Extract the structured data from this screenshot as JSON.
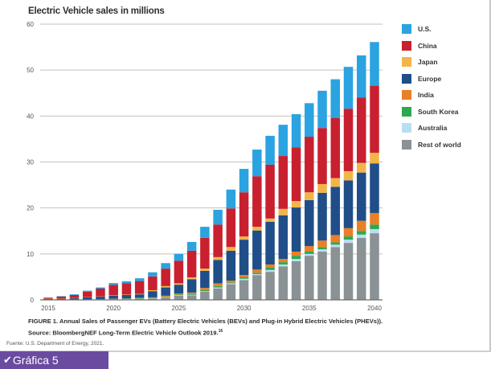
{
  "chart_data": {
    "type": "bar",
    "stacked": true,
    "title": "Electric Vehicle sales in millions",
    "xlabel": "",
    "ylabel": "",
    "ylim": [
      0,
      60
    ],
    "yticks": [
      0,
      10,
      20,
      30,
      40,
      50,
      60
    ],
    "xticks": [
      "2015",
      "2020",
      "2025",
      "2030",
      "2035",
      "2040"
    ],
    "grid": true,
    "legend_position": "right",
    "categories": [
      "2015",
      "2016",
      "2017",
      "2018",
      "2019",
      "2020",
      "2021",
      "2022",
      "2023",
      "2024",
      "2025",
      "2026",
      "2027",
      "2028",
      "2029",
      "2030",
      "2031",
      "2032",
      "2033",
      "2034",
      "2035",
      "2036",
      "2037",
      "2038",
      "2039",
      "2040"
    ],
    "series": [
      {
        "name": "Rest of world",
        "color": "#8a9296",
        "values": [
          0.0,
          0.0,
          0.05,
          0.05,
          0.1,
          0.1,
          0.15,
          0.2,
          0.3,
          0.5,
          0.9,
          1.0,
          1.8,
          2.5,
          3.4,
          4.3,
          5.4,
          6.1,
          7.3,
          8.4,
          9.6,
          10.5,
          11.5,
          12.4,
          13.5,
          14.5
        ]
      },
      {
        "name": "Australia",
        "color": "#b9def2",
        "values": [
          0.0,
          0.0,
          0.0,
          0.0,
          0.0,
          0.05,
          0.05,
          0.05,
          0.05,
          0.1,
          0.1,
          0.1,
          0.1,
          0.2,
          0.2,
          0.3,
          0.2,
          0.4,
          0.4,
          0.5,
          0.4,
          0.5,
          0.5,
          0.7,
          0.7,
          0.9
        ]
      },
      {
        "name": "South Korea",
        "color": "#2fa84f",
        "values": [
          0.0,
          0.0,
          0.0,
          0.05,
          0.05,
          0.05,
          0.05,
          0.1,
          0.1,
          0.1,
          0.2,
          0.2,
          0.2,
          0.3,
          0.2,
          0.3,
          0.3,
          0.5,
          0.5,
          0.7,
          0.5,
          0.5,
          0.5,
          0.7,
          0.8,
          1.0
        ]
      },
      {
        "name": "India",
        "color": "#e97f27",
        "values": [
          0.0,
          0.0,
          0.0,
          0.0,
          0.0,
          0.05,
          0.05,
          0.1,
          0.1,
          0.2,
          0.2,
          0.3,
          0.5,
          0.6,
          0.4,
          0.5,
          0.7,
          0.7,
          0.7,
          0.9,
          1.2,
          1.4,
          1.6,
          1.8,
          2.2,
          2.5
        ]
      },
      {
        "name": "Europe",
        "color": "#1f4e88",
        "values": [
          0.2,
          0.2,
          0.3,
          0.45,
          0.55,
          0.7,
          0.75,
          0.75,
          1.35,
          1.8,
          1.9,
          2.9,
          3.7,
          5.1,
          6.5,
          7.7,
          8.5,
          9.3,
          9.5,
          9.6,
          10.0,
          10.4,
          10.5,
          10.4,
          10.5,
          10.8
        ]
      },
      {
        "name": "Japan",
        "color": "#f3b548",
        "values": [
          0.05,
          0.05,
          0.05,
          0.05,
          0.05,
          0.1,
          0.1,
          0.1,
          0.2,
          0.3,
          0.3,
          0.4,
          0.5,
          0.6,
          0.8,
          0.7,
          0.8,
          0.7,
          1.4,
          1.4,
          1.7,
          1.9,
          1.9,
          2.0,
          2.1,
          2.3
        ]
      },
      {
        "name": "China",
        "color": "#c8202f",
        "values": [
          0.2,
          0.45,
          0.65,
          1.2,
          1.7,
          2.2,
          2.5,
          2.8,
          3.0,
          3.8,
          4.9,
          5.8,
          6.7,
          7.1,
          8.4,
          9.6,
          11.0,
          11.7,
          11.5,
          11.7,
          12.1,
          12.2,
          13.1,
          13.6,
          14.2,
          14.6
        ]
      },
      {
        "name": "U.S.",
        "color": "#2aa3e0",
        "values": [
          0.05,
          0.1,
          0.15,
          0.2,
          0.25,
          0.4,
          0.4,
          0.6,
          0.9,
          1.2,
          1.5,
          1.9,
          2.4,
          3.2,
          4.1,
          5.1,
          5.8,
          6.3,
          6.8,
          7.2,
          7.3,
          8.1,
          8.4,
          9.1,
          9.2,
          9.5
        ]
      }
    ]
  },
  "legend": {
    "items": [
      {
        "label": "U.S.",
        "color": "#2aa3e0"
      },
      {
        "label": "China",
        "color": "#c8202f"
      },
      {
        "label": "Japan",
        "color": "#f3b548"
      },
      {
        "label": "Europe",
        "color": "#1f4e88"
      },
      {
        "label": "India",
        "color": "#e97f27"
      },
      {
        "label": "South Korea",
        "color": "#2fa84f"
      },
      {
        "label": "Australia",
        "color": "#b9def2"
      },
      {
        "label": "Rest of world",
        "color": "#8a9296"
      }
    ]
  },
  "caption": {
    "line1": "FIGURE 1. Annual Sales of Passenger EVs (Battery Electric Vehicles (BEVs) and Plug-in Hybrid Electric Vehicles (PHEVs)).",
    "line2": "Source: BloombergNEF Long-Term Electric Vehicle Outlook 2019.",
    "footnote_ref": "16"
  },
  "source_note": "Fuente: U.S. Department of Energy, 2021.",
  "figure_label": {
    "icon": "check-mark-icon",
    "text": "Gráfica 5",
    "color": "#6a4ba0"
  }
}
